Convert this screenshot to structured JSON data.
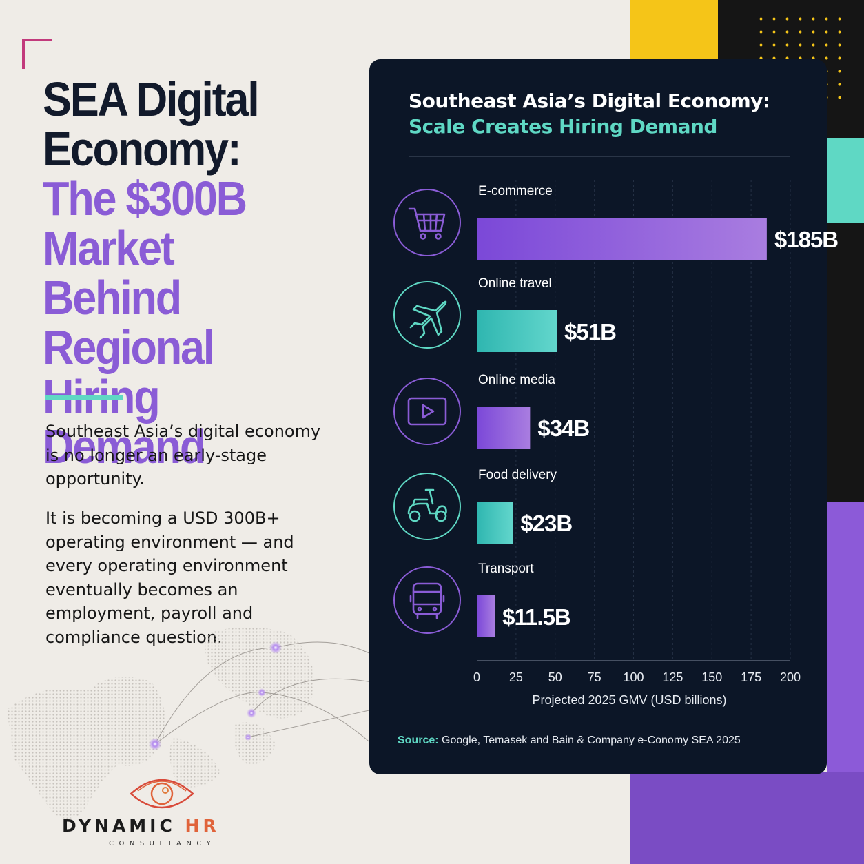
{
  "headline": {
    "line1": "SEA Digital",
    "line2": "Economy:",
    "line3": "The $300B",
    "line4": "Market Behind",
    "line5": "Regional Hiring",
    "line6": "Demand"
  },
  "intro": {
    "paragraph1": "Southeast Asia’s digital economy is no longer an early-stage opportunity.",
    "paragraph2": "It is becoming a USD 300B+ operating environment — and every operating environment eventually becomes an employment, payroll and compliance question."
  },
  "logo": {
    "wordmark_main": "DYNAMIC ",
    "wordmark_accent": "HR",
    "tagline": "CONSULTANCY"
  },
  "colors": {
    "card_bg": "#0c1627",
    "purple": "#8a5cd6",
    "teal": "#5fd8c4",
    "yellow": "#f5c518",
    "brand_orange": "#e0633a"
  },
  "chart_data": {
    "type": "bar",
    "orientation": "horizontal",
    "title": "Southeast Asia’s Digital Economy:",
    "subtitle": "Scale Creates Hiring Demand",
    "xlabel": "Projected 2025 GMV (USD billions)",
    "xlim": [
      0,
      200
    ],
    "xticks": [
      "0",
      "25",
      "50",
      "75",
      "100",
      "125",
      "150",
      "175",
      "200"
    ],
    "grid": "vertical dashed",
    "categories": [
      "E-commerce",
      "Online travel",
      "Online media",
      "Food delivery",
      "Transport"
    ],
    "values": [
      185,
      51,
      34,
      23,
      11.5
    ],
    "value_labels": [
      "$185B",
      "$51B",
      "$34B",
      "$23B",
      "$11.5B"
    ],
    "icons": [
      "shopping-cart-icon",
      "airplane-icon",
      "play-video-icon",
      "scooter-icon",
      "bus-icon"
    ],
    "bar_colors": [
      "purple",
      "teal",
      "purple",
      "teal",
      "purple"
    ]
  },
  "source": {
    "label": "Source:",
    "text": " Google, Temasek and Bain & Company e-Conomy SEA 2025"
  }
}
